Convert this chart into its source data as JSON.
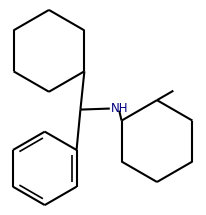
{
  "background_color": "#ffffff",
  "line_color": "#000000",
  "nh_color": "#000080",
  "line_width": 1.5,
  "figsize": [
    2.07,
    2.15
  ],
  "dpi": 100,
  "NH_label": "NH",
  "NH_fontsize": 8.5
}
